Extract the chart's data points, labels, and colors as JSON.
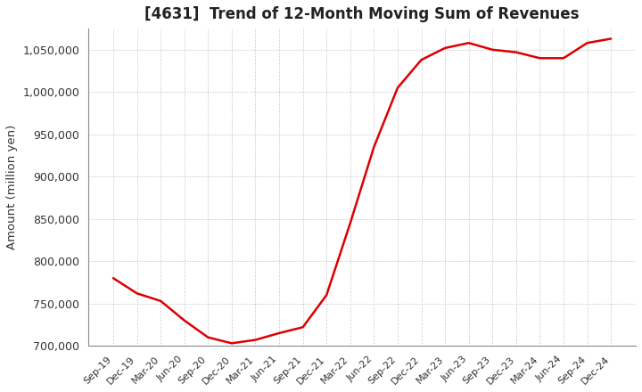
{
  "title": "[4631]  Trend of 12-Month Moving Sum of Revenues",
  "ylabel": "Amount (million yen)",
  "line_color": "#DD0000",
  "line_width": 1.8,
  "background_color": "#FFFFFF",
  "grid_color": "#BBBBBB",
  "ylim": [
    700000,
    1075000
  ],
  "yticks": [
    700000,
    750000,
    800000,
    850000,
    900000,
    950000,
    1000000,
    1050000
  ],
  "x_labels": [
    "Sep-19",
    "Dec-19",
    "Mar-20",
    "Jun-20",
    "Sep-20",
    "Dec-20",
    "Mar-21",
    "Jun-21",
    "Sep-21",
    "Dec-21",
    "Mar-22",
    "Jun-22",
    "Sep-22",
    "Dec-22",
    "Mar-23",
    "Jun-23",
    "Sep-23",
    "Dec-23",
    "Mar-24",
    "Jun-24",
    "Sep-24",
    "Dec-24"
  ],
  "y_values": [
    780000,
    762000,
    753000,
    730000,
    710000,
    703000,
    707000,
    715000,
    722000,
    760000,
    845000,
    935000,
    1005000,
    1038000,
    1052000,
    1058000,
    1050000,
    1047000,
    1040000,
    1040000,
    1058000,
    1063000
  ]
}
